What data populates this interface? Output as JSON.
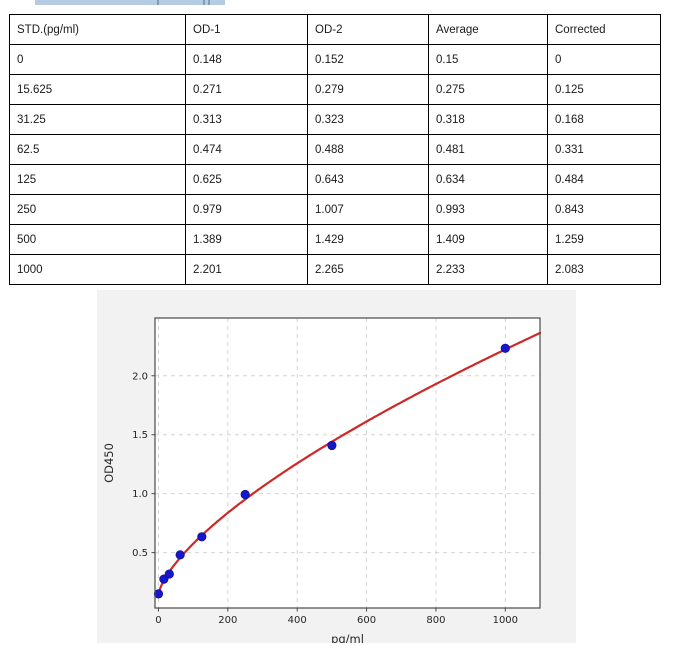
{
  "top_strip": {
    "note": "partially clipped blue text-selection highlight, no legible text",
    "color": "#b5cbe2"
  },
  "table": {
    "headers": [
      "STD.(pg/ml)",
      "OD-1",
      "OD-2",
      "Average",
      "Corrected"
    ],
    "rows": [
      [
        "0",
        "0.148",
        "0.152",
        "0.15",
        "0"
      ],
      [
        "15.625",
        "0.271",
        "0.279",
        "0.275",
        "0.125"
      ],
      [
        "31.25",
        "0.313",
        "0.323",
        "0.318",
        "0.168"
      ],
      [
        "62.5",
        "0.474",
        "0.488",
        "0.481",
        "0.331"
      ],
      [
        "125",
        "0.625",
        "0.643",
        "0.634",
        "0.484"
      ],
      [
        "250",
        "0.979",
        "1.007",
        "0.993",
        "0.843"
      ],
      [
        "500",
        "1.389",
        "1.429",
        "1.409",
        "1.259"
      ],
      [
        "1000",
        "2.201",
        "2.265",
        "2.233",
        "2.083"
      ]
    ]
  },
  "chart_data": {
    "type": "scatter",
    "title": "",
    "xlabel": "pg/ml",
    "ylabel": "OD450",
    "x": [
      0,
      15.625,
      31.25,
      62.5,
      125,
      250,
      500,
      1000
    ],
    "y": [
      0.15,
      0.275,
      0.318,
      0.481,
      0.634,
      0.993,
      1.409,
      2.233
    ],
    "fit_curve": {
      "type": "power",
      "formula": "y = a + b*x^c",
      "a": 0.14,
      "b": 0.019,
      "c": 0.68,
      "x_range": [
        0,
        1100
      ]
    },
    "xticks": [
      0,
      200,
      400,
      600,
      800,
      1000
    ],
    "yticks": [
      0.5,
      1.0,
      1.5,
      2.0
    ],
    "xlim": [
      -10,
      1100
    ],
    "ylim": [
      0.03,
      2.49
    ],
    "grid": "dashed",
    "legend": false,
    "colors": {
      "points": "#1717c9",
      "curve": "#cc2a29",
      "figure_bg": "#f2f2f2",
      "plot_bg": "#ffffff",
      "grid": "#d4d4d4",
      "spine": "#4a4a4a",
      "tick_text": "#262626"
    }
  }
}
